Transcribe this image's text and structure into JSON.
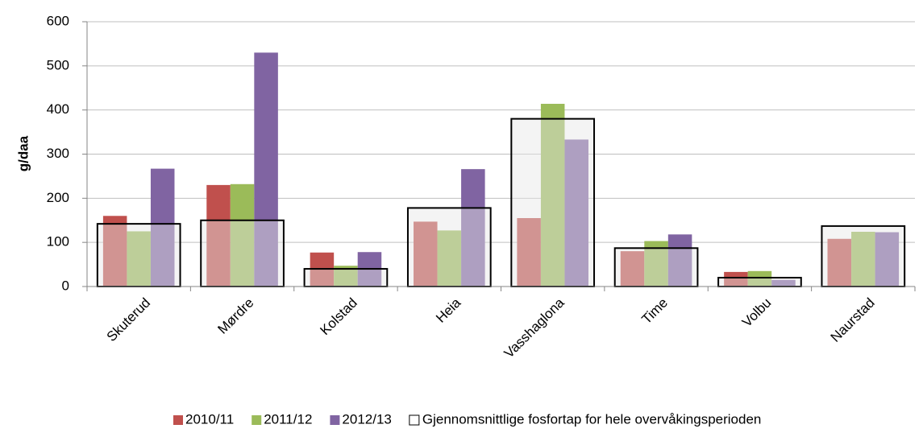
{
  "chart_data": {
    "type": "bar",
    "ylabel": "g/daa",
    "categories": [
      "Skuterud",
      "Mørdre",
      "Kolstad",
      "Heia",
      "Vasshaglona",
      "Time",
      "Volbu",
      "Naurstad"
    ],
    "series": [
      {
        "name": "2010/11",
        "color": "#c0504d",
        "values": [
          160,
          230,
          77,
          147,
          155,
          80,
          33,
          108
        ]
      },
      {
        "name": "2011/12",
        "color": "#9bbb59",
        "values": [
          125,
          232,
          47,
          127,
          414,
          103,
          35,
          124
        ]
      },
      {
        "name": "2012/13",
        "color": "#8064a2",
        "values": [
          267,
          530,
          78,
          266,
          333,
          118,
          15,
          123
        ]
      }
    ],
    "average": {
      "name": "Gjennomsnittlige fosfortap for hele overvåkingsperioden",
      "values": [
        142,
        150,
        40,
        178,
        380,
        87,
        20,
        137
      ]
    },
    "ylim": [
      0,
      600
    ],
    "yticks": [
      0,
      100,
      200,
      300,
      400,
      500,
      600
    ],
    "grid": true
  }
}
